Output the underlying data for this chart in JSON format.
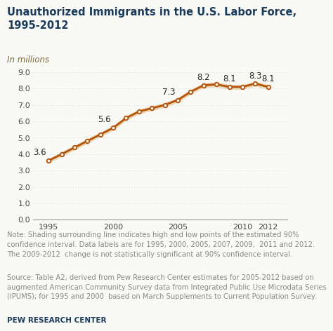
{
  "title": "Unauthorized Immigrants in the U.S. Labor Force,\n1995-2012",
  "subtitle": "In millions",
  "line_color": "#b5520a",
  "marker_color": "#b5520a",
  "shade_color": "#e8d5b0",
  "bg_color": "#f9f9f6",
  "x": [
    1995,
    1996,
    1997,
    1998,
    1999,
    2000,
    2001,
    2002,
    2003,
    2004,
    2005,
    2006,
    2007,
    2008,
    2009,
    2010,
    2011,
    2012
  ],
  "y": [
    3.6,
    4.0,
    4.4,
    4.8,
    5.2,
    5.6,
    6.2,
    6.6,
    6.8,
    7.0,
    7.3,
    7.8,
    8.2,
    8.25,
    8.1,
    8.1,
    8.3,
    8.1
  ],
  "y_upper": [
    3.75,
    4.15,
    4.55,
    4.95,
    5.35,
    5.75,
    6.35,
    6.75,
    6.95,
    7.15,
    7.45,
    7.95,
    8.35,
    8.4,
    8.25,
    8.25,
    8.45,
    8.25
  ],
  "y_lower": [
    3.45,
    3.85,
    4.25,
    4.65,
    5.05,
    5.45,
    6.05,
    6.45,
    6.65,
    6.85,
    7.15,
    7.65,
    8.05,
    8.1,
    7.95,
    7.95,
    8.15,
    7.95
  ],
  "labeled_points": {
    "1995": 3.6,
    "2000": 5.6,
    "2005": 7.3,
    "2007": 8.2,
    "2009": 8.1,
    "2011": 8.3,
    "2012": 8.1
  },
  "ylim": [
    0.0,
    9.0
  ],
  "yticks": [
    0.0,
    1.0,
    2.0,
    3.0,
    4.0,
    5.0,
    6.0,
    7.0,
    8.0,
    9.0
  ],
  "xticks": [
    1995,
    2000,
    2005,
    2010,
    2012
  ],
  "grid_color": "#cccccc",
  "note_text": "Note: Shading surrounding line indicates high and low points of the estimated 90%\nconfidence interval. Data labels are for 1995, 2000, 2005, 2007, 2009,  2011 and 2012.\nThe 2009-2012  change is not statistically significant at 90% confidence interval.",
  "source_text": "Source: Table A2, derived from Pew Research Center estimates for 2005-2012 based on\naugmented American Community Survey data from Integrated Public Use Microdata Series\n(IPUMS); for 1995 and 2000  based on March Supplements to Current Population Survey.",
  "pew_text": "PEW RESEARCH CENTER",
  "title_color": "#1a3a5c",
  "subtitle_color": "#7a6a3c",
  "note_color": "#888888",
  "source_color": "#888888",
  "pew_color": "#1a3a5c",
  "title_fontsize": 10.5,
  "subtitle_fontsize": 8.5,
  "tick_fontsize": 8,
  "note_fontsize": 7.2,
  "label_fontsize": 8.5,
  "pew_fontsize": 7.5
}
